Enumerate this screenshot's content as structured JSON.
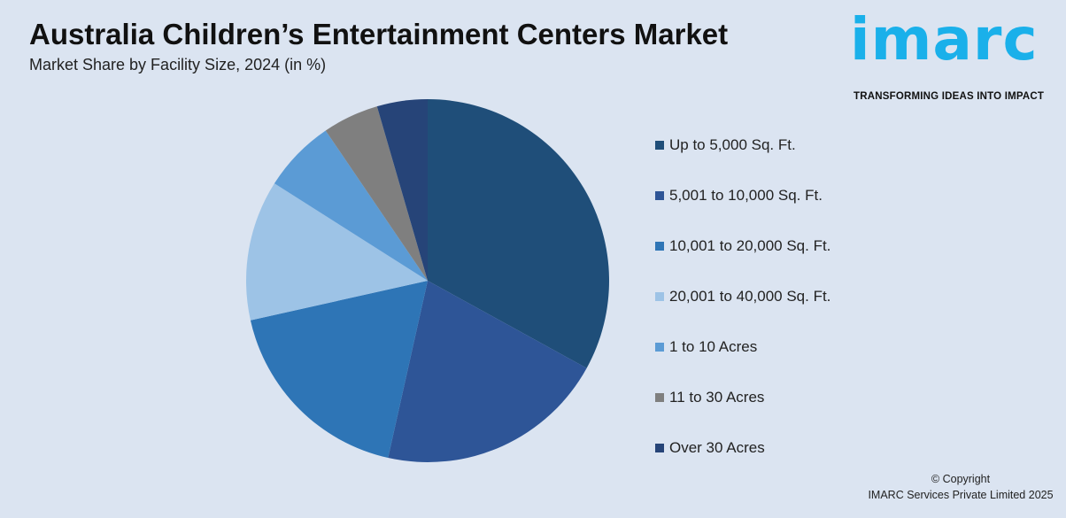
{
  "header": {
    "title": "Australia Children’s Entertainment Centers Market",
    "subtitle": "Market Share by Facility Size, 2024 (in %)"
  },
  "brand": {
    "logo_text": "imarc",
    "tagline": "TRANSFORMING IDEAS INTO IMPACT",
    "accent_color": "#1ab0ea"
  },
  "footer": {
    "copyright_line1": "© Copyright",
    "copyright_line2": "IMARC Services Private Limited 2025"
  },
  "chart_data": {
    "type": "pie",
    "title": "Australia Children’s Entertainment Centers Market",
    "subtitle": "Market Share by Facility Size, 2024 (in %)",
    "legend_position": "right",
    "categories": [
      "Up to 5,000 Sq. Ft.",
      "5,001 to 10,000 Sq. Ft.",
      "10,001 to 20,000 Sq. Ft.",
      "20,001 to 40,000 Sq. Ft.",
      "1 to 10 Acres",
      "11 to 30 Acres",
      "Over 30 Acres"
    ],
    "values": [
      33,
      20.5,
      18,
      12.5,
      6.5,
      5,
      4.5
    ],
    "colors": [
      "#1f4e79",
      "#2e5597",
      "#2e75b6",
      "#9dc3e6",
      "#5b9bd5",
      "#7f7f7f",
      "#264478"
    ]
  }
}
